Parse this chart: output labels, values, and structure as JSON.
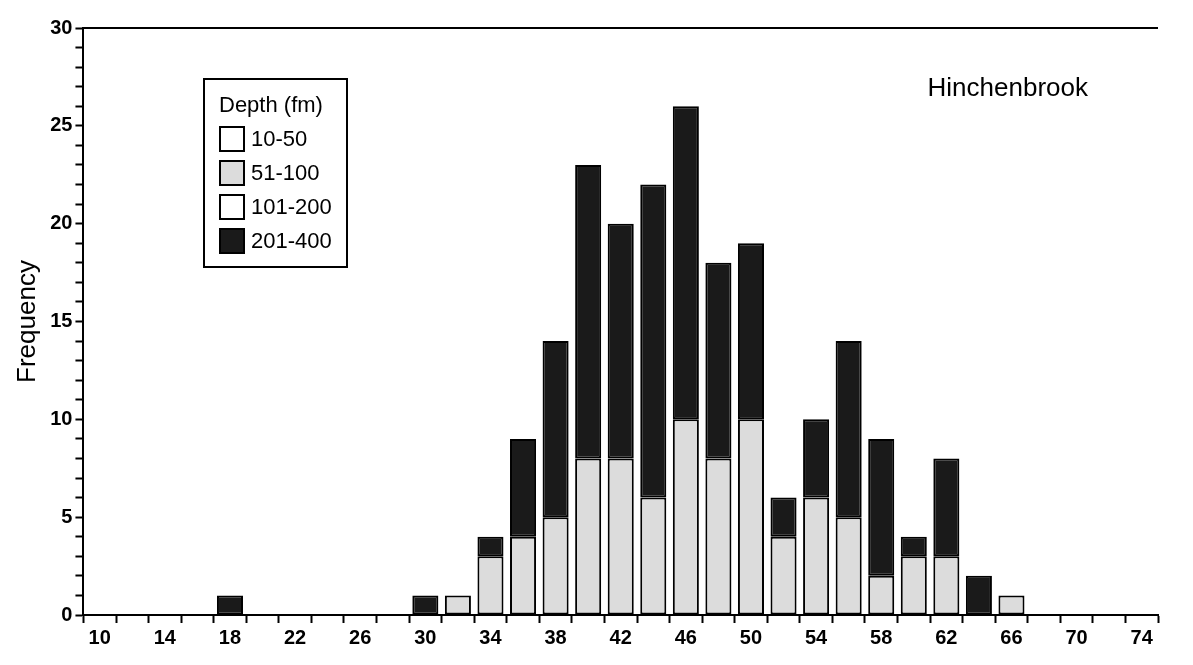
{
  "chart_data": {
    "type": "bar",
    "stacked": true,
    "ylabel": "Frequency",
    "legend_title": "Depth (fm)",
    "legend": "top left",
    "annotations": [
      "Hinchenbrook"
    ],
    "categories": [
      "10",
      null,
      "14",
      null,
      "18",
      null,
      "22",
      null,
      "26",
      null,
      "30",
      null,
      "34",
      null,
      "38",
      null,
      "42",
      null,
      "46",
      null,
      "50",
      null,
      "54",
      null,
      "58",
      null,
      "62",
      null,
      "66",
      null,
      "70",
      null,
      "74"
    ],
    "ylim": [
      0,
      30
    ],
    "yticks": [
      0,
      {
        "value": 1,
        "label": null
      },
      {
        "value": 2,
        "label": null
      },
      {
        "value": 3,
        "label": null
      },
      {
        "value": 4,
        "label": null
      },
      5,
      {
        "value": 6,
        "label": null
      },
      {
        "value": 7,
        "label": null
      },
      {
        "value": 8,
        "label": null
      },
      {
        "value": 9,
        "label": null
      },
      10,
      {
        "value": 11,
        "label": null
      },
      {
        "value": 12,
        "label": null
      },
      {
        "value": 13,
        "label": null
      },
      {
        "value": 14,
        "label": null
      },
      15,
      {
        "value": 16,
        "label": null
      },
      {
        "value": 17,
        "label": null
      },
      {
        "value": 18,
        "label": null
      },
      {
        "value": 19,
        "label": null
      },
      20,
      {
        "value": 21,
        "label": null
      },
      {
        "value": 22,
        "label": null
      },
      {
        "value": 23,
        "label": null
      },
      {
        "value": 24,
        "label": null
      },
      25,
      {
        "value": 26,
        "label": null
      },
      {
        "value": 27,
        "label": null
      },
      {
        "value": 28,
        "label": null
      },
      {
        "value": 29,
        "label": null
      },
      30
    ],
    "series": [
      {
        "name": "10-50",
        "color": "#ffffff",
        "values": [
          0,
          0,
          0,
          0,
          0,
          0,
          0,
          0,
          0,
          0,
          0,
          0,
          0,
          0,
          0,
          0,
          0,
          0,
          0,
          0,
          0,
          0,
          0,
          0,
          0,
          0,
          0,
          0,
          0,
          0,
          0,
          0,
          0
        ]
      },
      {
        "name": "51-100",
        "color": "#dcdcdc",
        "values": [
          0,
          0,
          0,
          0,
          0,
          0,
          0,
          0,
          0,
          0,
          0,
          1,
          3,
          4,
          5,
          8,
          8,
          6,
          10,
          8,
          10,
          4,
          6,
          5,
          2,
          3,
          3,
          0,
          1,
          0,
          0,
          0,
          0
        ]
      },
      {
        "name": "101-200",
        "color": "#ffffff",
        "values": [
          0,
          0,
          0,
          0,
          0,
          0,
          0,
          0,
          0,
          0,
          0,
          0,
          0,
          0,
          0,
          0,
          0,
          0,
          0,
          0,
          0,
          0,
          0,
          0,
          0,
          0,
          0,
          0,
          0,
          0,
          0,
          0,
          0
        ]
      },
      {
        "name": "201-400",
        "color": "#1a1a1a",
        "values": [
          0,
          0,
          0,
          0,
          1,
          0,
          0,
          0,
          0,
          0,
          1,
          0,
          1,
          5,
          9,
          15,
          12,
          16,
          16,
          10,
          9,
          2,
          4,
          9,
          7,
          1,
          5,
          2,
          0,
          0,
          0,
          0,
          0
        ]
      }
    ]
  }
}
